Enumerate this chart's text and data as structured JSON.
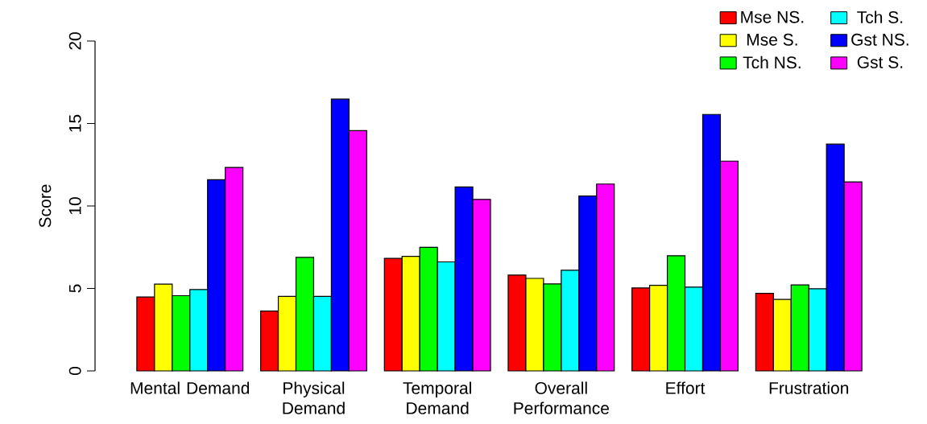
{
  "chart_data": {
    "type": "bar",
    "ylabel": "Score",
    "categories": [
      "Mental Demand",
      "Physical Demand",
      "Temporal Demand",
      "Overall Performance",
      "Effort",
      "Frustration"
    ],
    "series": [
      {
        "name": "Mse NS.",
        "color": "#ff0000",
        "values": [
          4.48,
          3.63,
          6.82,
          5.81,
          5.03,
          4.7
        ]
      },
      {
        "name": "Mse S.",
        "color": "#ffff00",
        "values": [
          5.26,
          4.52,
          6.95,
          5.61,
          5.19,
          4.34
        ]
      },
      {
        "name": "Tch NS.",
        "color": "#00ff00",
        "values": [
          4.56,
          6.88,
          7.49,
          5.27,
          6.98,
          5.21
        ]
      },
      {
        "name": "Tch S.",
        "color": "#00ffff",
        "values": [
          4.93,
          4.52,
          6.61,
          6.1,
          5.08,
          4.98
        ]
      },
      {
        "name": "Gst NS.",
        "color": "#0000ff",
        "values": [
          11.59,
          16.48,
          11.15,
          10.6,
          15.55,
          13.75
        ]
      },
      {
        "name": "Gst S.",
        "color": "#ff00ff",
        "values": [
          12.34,
          14.57,
          10.4,
          11.33,
          12.72,
          11.46
        ]
      }
    ],
    "ylim": [
      0,
      20
    ],
    "yticks": [
      0,
      5,
      10,
      15,
      20
    ],
    "legend": "top right"
  }
}
